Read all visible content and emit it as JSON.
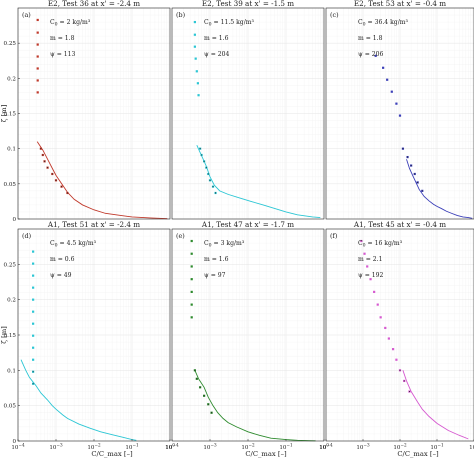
{
  "chart_data": [
    {
      "type": "line",
      "panel_label": "(a)",
      "title": "E2, Test 36 at x' = -2.4 m",
      "annotations": [
        "C_0 = 2 kg/m³",
        "m = 1.8",
        "ψ = 113"
      ],
      "color": "#c0392b",
      "xlabel": "",
      "ylabel": "ζ [m]",
      "xscale": "log",
      "xlim": [
        0.0001,
        1
      ],
      "ylim": [
        0,
        0.3
      ],
      "grid": true,
      "scatter": {
        "x": [
          0.00033,
          0.00033,
          0.00033,
          0.00033,
          0.00033,
          0.00033,
          0.00033,
          0.0004,
          0.00045,
          0.0005,
          0.0006,
          0.0008,
          0.001,
          0.0014,
          0.002
        ],
        "y": [
          0.283,
          0.265,
          0.248,
          0.231,
          0.214,
          0.197,
          0.18,
          0.1,
          0.091,
          0.082,
          0.073,
          0.064,
          0.055,
          0.046,
          0.037
        ]
      },
      "line": {
        "x": [
          0.00032,
          0.00045,
          0.0006,
          0.0008,
          0.001,
          0.0015,
          0.002,
          0.003,
          0.005,
          0.01,
          0.02,
          0.05,
          0.1,
          0.3,
          0.6,
          0.85
        ],
        "y": [
          0.11,
          0.098,
          0.085,
          0.072,
          0.062,
          0.048,
          0.038,
          0.028,
          0.02,
          0.013,
          0.008,
          0.005,
          0.003,
          0.0015,
          0.0008,
          0.0004
        ]
      }
    },
    {
      "type": "line",
      "panel_label": "(b)",
      "title": "E2, Test 39 at x' = -1.5 m",
      "annotations": [
        "C_0 = 11.5 kg/m³",
        "m = 1.6",
        "ψ = 204"
      ],
      "color": "#2bc6d4",
      "xlabel": "",
      "ylabel": "",
      "xscale": "log",
      "xlim": [
        0.0001,
        1
      ],
      "ylim": [
        0,
        0.3
      ],
      "grid": true,
      "scatter": {
        "x": [
          0.0004,
          0.0004,
          0.0004,
          0.00042,
          0.00045,
          0.00048,
          0.0005,
          0.00055,
          0.0006,
          0.0007,
          0.0008,
          0.0009,
          0.001,
          0.0012,
          0.0014
        ],
        "y": [
          0.28,
          0.262,
          0.245,
          0.228,
          0.21,
          0.193,
          0.176,
          0.1,
          0.091,
          0.082,
          0.073,
          0.064,
          0.055,
          0.046,
          0.037
        ]
      },
      "line": {
        "x": [
          0.00045,
          0.0006,
          0.0008,
          0.001,
          0.0013,
          0.0018,
          0.003,
          0.006,
          0.012,
          0.025,
          0.05,
          0.1,
          0.2,
          0.5,
          0.8
        ],
        "y": [
          0.105,
          0.09,
          0.075,
          0.06,
          0.048,
          0.04,
          0.035,
          0.03,
          0.025,
          0.02,
          0.015,
          0.01,
          0.006,
          0.003,
          0.002
        ]
      }
    },
    {
      "type": "line",
      "panel_label": "(c)",
      "title": "E2, Test 53 at x' = -0.4 m",
      "annotations": [
        "C_0 = 36.4 kg/m³",
        "m = 1.8",
        "ψ = 206"
      ],
      "color": "#3b3fb8",
      "xlabel": "",
      "ylabel": "",
      "xscale": "log",
      "xlim": [
        0.0001,
        1
      ],
      "ylim": [
        0,
        0.3
      ],
      "grid": true,
      "scatter": {
        "x": [
          0.0022,
          0.0035,
          0.0045,
          0.006,
          0.008,
          0.01,
          0.012,
          0.016,
          0.02,
          0.025,
          0.03,
          0.04
        ],
        "y": [
          0.232,
          0.215,
          0.198,
          0.181,
          0.164,
          0.147,
          0.1,
          0.088,
          0.076,
          0.064,
          0.052,
          0.04
        ]
      },
      "line": {
        "x": [
          0.015,
          0.018,
          0.022,
          0.027,
          0.033,
          0.045,
          0.06,
          0.08,
          0.1,
          0.13,
          0.18,
          0.25,
          0.35,
          0.5,
          0.7,
          0.9
        ],
        "y": [
          0.085,
          0.072,
          0.062,
          0.052,
          0.042,
          0.032,
          0.026,
          0.021,
          0.018,
          0.015,
          0.011,
          0.008,
          0.005,
          0.003,
          0.002,
          0.001
        ]
      }
    },
    {
      "type": "line",
      "panel_label": "(d)",
      "title": "A1, Test 51 at x' = -2.4 m",
      "annotations": [
        "C_0 = 4.5 kg/m³",
        "m = 0.6",
        "ψ = 49"
      ],
      "color": "#2bc6d4",
      "xlabel": "C/C_max [–]",
      "ylabel": "ζ [m]",
      "xscale": "log",
      "xlim": [
        0.0001,
        1
      ],
      "ylim": [
        0,
        0.3
      ],
      "grid": true,
      "scatter": {
        "x": [
          0.00025,
          0.00025,
          0.00025,
          0.00025,
          0.00025,
          0.00025,
          0.00025,
          0.00025,
          0.00025,
          0.00025,
          0.00025,
          0.00025
        ],
        "y": [
          0.268,
          0.251,
          0.234,
          0.217,
          0.2,
          0.183,
          0.166,
          0.149,
          0.132,
          0.115,
          0.098,
          0.081
        ]
      },
      "line": {
        "x": [
          0.00012,
          0.00016,
          0.0002,
          0.0003,
          0.0004,
          0.0006,
          0.0008,
          0.001,
          0.0015,
          0.002,
          0.004,
          0.008,
          0.015,
          0.03,
          0.06,
          0.1,
          0.13
        ],
        "y": [
          0.115,
          0.1,
          0.09,
          0.078,
          0.068,
          0.058,
          0.05,
          0.045,
          0.037,
          0.032,
          0.024,
          0.018,
          0.013,
          0.009,
          0.005,
          0.002,
          0.001
        ]
      }
    },
    {
      "type": "line",
      "panel_label": "(e)",
      "title": "A1, Test 47 at x' = -1.7 m",
      "annotations": [
        "C_0 = 3 kg/m³",
        "m = 1.6",
        "ψ = 97"
      ],
      "color": "#2e8b2e",
      "xlabel": "C/C_max [–]",
      "ylabel": "",
      "xscale": "log",
      "xlim": [
        0.0001,
        1
      ],
      "ylim": [
        0,
        0.3
      ],
      "grid": true,
      "scatter": {
        "x": [
          0.00033,
          0.00033,
          0.00033,
          0.00033,
          0.00033,
          0.00033,
          0.00033,
          0.0004,
          0.00045,
          0.00055,
          0.0007,
          0.0009,
          0.0011
        ],
        "y": [
          0.283,
          0.265,
          0.247,
          0.229,
          0.211,
          0.193,
          0.175,
          0.1,
          0.088,
          0.076,
          0.064,
          0.052,
          0.04
        ]
      },
      "line": {
        "x": [
          0.0004,
          0.0005,
          0.0007,
          0.0009,
          0.0012,
          0.0016,
          0.0022,
          0.003,
          0.005,
          0.01,
          0.02,
          0.04,
          0.1,
          0.2,
          0.4,
          0.6
        ],
        "y": [
          0.1,
          0.088,
          0.076,
          0.062,
          0.05,
          0.04,
          0.032,
          0.026,
          0.02,
          0.013,
          0.008,
          0.004,
          0.002,
          0.001,
          0.0005,
          0.0002
        ]
      }
    },
    {
      "type": "line",
      "panel_label": "(f)",
      "title": "A1, Test 45 at x' = -0.4 m",
      "annotations": [
        "C_0 = 16 kg/m³",
        "m = 2.1",
        "ψ = 192"
      ],
      "color": "#d65ad0",
      "xlabel": "C/C_max [–]",
      "ylabel": "",
      "xscale": "log",
      "xlim": [
        0.0001,
        1
      ],
      "ylim": [
        0,
        0.3
      ],
      "grid": true,
      "scatter": {
        "x": [
          0.0009,
          0.0011,
          0.0013,
          0.0016,
          0.002,
          0.0025,
          0.003,
          0.004,
          0.005,
          0.0065,
          0.008,
          0.01,
          0.013,
          0.018
        ],
        "y": [
          0.283,
          0.265,
          0.247,
          0.229,
          0.211,
          0.193,
          0.175,
          0.16,
          0.145,
          0.13,
          0.115,
          0.1,
          0.085,
          0.07
        ]
      },
      "line": {
        "x": [
          0.012,
          0.015,
          0.02,
          0.03,
          0.04,
          0.06,
          0.1,
          0.2,
          0.4,
          0.7
        ],
        "y": [
          0.1,
          0.085,
          0.07,
          0.055,
          0.045,
          0.035,
          0.025,
          0.015,
          0.008,
          0.003
        ]
      }
    }
  ]
}
